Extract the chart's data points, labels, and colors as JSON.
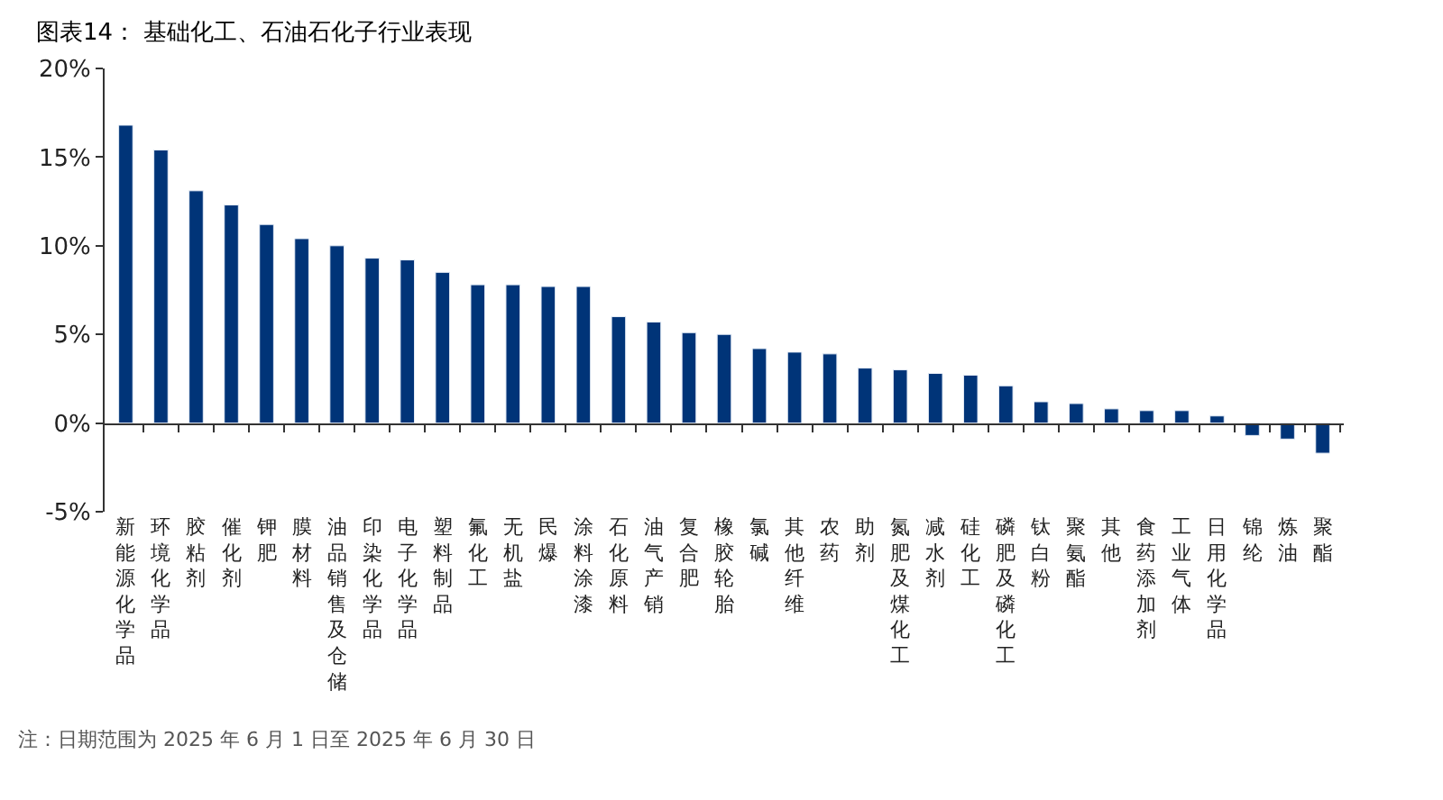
{
  "chart_data": {
    "type": "bar",
    "title": "图表14： 基础化工、石油石化子行业表现",
    "categories": [
      "新能源化学品",
      "环境化学品",
      "胶粘剂",
      "催化剂",
      "钾肥",
      "膜材料",
      "油品销售及仓储",
      "印染化学品",
      "电子化学品",
      "塑料制品",
      "氟化工",
      "无机盐",
      "民爆",
      "涂料涂漆",
      "石化原料",
      "油气产销",
      "复合肥",
      "橡胶轮胎",
      "氯碱",
      "其他纤维",
      "农药",
      "助剂",
      "氮肥及煤化工",
      "减水剂",
      "硅化工",
      "磷肥及磷化工",
      "钛白粉",
      "聚氨酯",
      "其他",
      "食药添加剂",
      "工业气体",
      "日用化学品",
      "锦纶",
      "炼油",
      "聚酯"
    ],
    "values": [
      16.8,
      15.4,
      13.1,
      12.3,
      11.2,
      10.4,
      10.0,
      9.3,
      9.2,
      8.5,
      7.8,
      7.8,
      7.7,
      7.7,
      6.0,
      5.7,
      5.1,
      5.0,
      4.2,
      4.0,
      3.9,
      3.1,
      3.0,
      2.8,
      2.7,
      2.1,
      1.2,
      1.1,
      0.8,
      0.7,
      0.7,
      0.4,
      -0.7,
      -0.9,
      -1.7
    ],
    "color": "#003478",
    "ylim": [
      -5,
      20
    ],
    "yticks": [
      {
        "value": -5,
        "label": "-5%"
      },
      {
        "value": 0,
        "label": "0%"
      },
      {
        "value": 5,
        "label": "5%"
      },
      {
        "value": 10,
        "label": "10%"
      },
      {
        "value": 15,
        "label": "15%"
      },
      {
        "value": 20,
        "label": "20%"
      }
    ],
    "annotations": [
      "注：日期范围为 2025 年 6 月 1 日至 2025 年 6 月 30 日"
    ]
  }
}
